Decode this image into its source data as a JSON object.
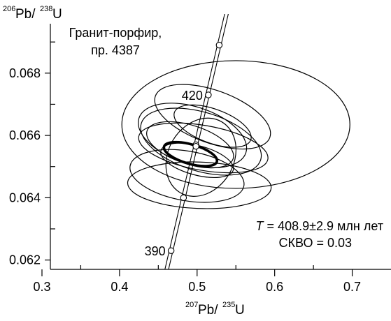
{
  "chart_data": {
    "type": "scatter",
    "title": "Гранит-порфир,\nпр. 4387",
    "y_axis_label": {
      "sup1": "206",
      "base1": "Pb/",
      "sup2": "238",
      "base2": "U"
    },
    "x_axis_label": {
      "sup1": "207",
      "base1": "Pb/",
      "sup2": "235",
      "base2": "U"
    },
    "xlim": [
      0.3,
      0.75
    ],
    "ylim": [
      0.0617,
      0.0699
    ],
    "x_ticks": [
      {
        "value": 0.3,
        "label": "0.3"
      },
      {
        "value": 0.4,
        "label": "0.4"
      },
      {
        "value": 0.5,
        "label": "0.5"
      },
      {
        "value": 0.6,
        "label": "0.6"
      },
      {
        "value": 0.7,
        "label": "0.7"
      }
    ],
    "x_minor_ticks": [
      0.35,
      0.45,
      0.55,
      0.65
    ],
    "y_ticks": [
      {
        "value": 0.062,
        "label": "0.062"
      },
      {
        "value": 0.064,
        "label": "0.064"
      },
      {
        "value": 0.066,
        "label": "0.066"
      },
      {
        "value": 0.068,
        "label": "0.068"
      }
    ],
    "y_minor_ticks": [
      0.063,
      0.065,
      0.067,
      0.069
    ],
    "concordia_points": [
      {
        "age": 390,
        "label": "390",
        "x": 0.4665,
        "y": 0.0623
      },
      {
        "age": 400,
        "label": "",
        "x": 0.4825,
        "y": 0.064
      },
      {
        "age": 410,
        "label": "",
        "x": 0.4985,
        "y": 0.0657
      },
      {
        "age": 420,
        "label": "420",
        "x": 0.5145,
        "y": 0.0673
      },
      {
        "age": 430,
        "label": "",
        "x": 0.5285,
        "y": 0.0689
      }
    ],
    "error_ellipses": [
      {
        "cx": 0.55,
        "cy": 0.06635,
        "rx": 0.147,
        "ry": 0.00205,
        "rot_deg": 0
      },
      {
        "cx": 0.487,
        "cy": 0.0647,
        "rx": 0.032,
        "ry": 0.00185,
        "rot_deg": -80
      },
      {
        "cx": 0.505,
        "cy": 0.0658,
        "rx": 0.038,
        "ry": 0.002,
        "rot_deg": -73
      },
      {
        "cx": 0.52,
        "cy": 0.0666,
        "rx": 0.034,
        "ry": 0.00195,
        "rot_deg": -70
      },
      {
        "cx": 0.494,
        "cy": 0.066,
        "rx": 0.037,
        "ry": 0.0018,
        "rot_deg": -72
      },
      {
        "cx": 0.505,
        "cy": 0.0653,
        "rx": 0.053,
        "ry": 0.00105,
        "rot_deg": -60
      },
      {
        "cx": 0.503,
        "cy": 0.0644,
        "rx": 0.03,
        "ry": 0.0023,
        "rot_deg": -88
      },
      {
        "cx": 0.508,
        "cy": 0.0656,
        "rx": 0.029,
        "ry": 0.0021,
        "rot_deg": -80
      },
      {
        "cx": 0.491,
        "cy": 0.0657,
        "rx": 0.025,
        "ry": 0.00145,
        "rot_deg": -72
      },
      {
        "cx": 0.5,
        "cy": 0.0652,
        "rx": 0.019,
        "ry": 0.0012,
        "rot_deg": -75
      },
      {
        "cx": 0.52,
        "cy": 0.0663,
        "rx": 0.022,
        "ry": 0.0013,
        "rot_deg": -70
      }
    ],
    "concordia_age_ellipse": {
      "cx": 0.4915,
      "cy": 0.0654,
      "rx": 0.0125,
      "ry": 0.00088,
      "rot_deg": -74
    },
    "concordia_age_point": {
      "x": 0.4985,
      "y": 0.06565
    },
    "result": {
      "age_var": "T",
      "age_text": " = 408.9±2.9 млн лет",
      "mswd_text": "СКВО = 0.03"
    }
  }
}
